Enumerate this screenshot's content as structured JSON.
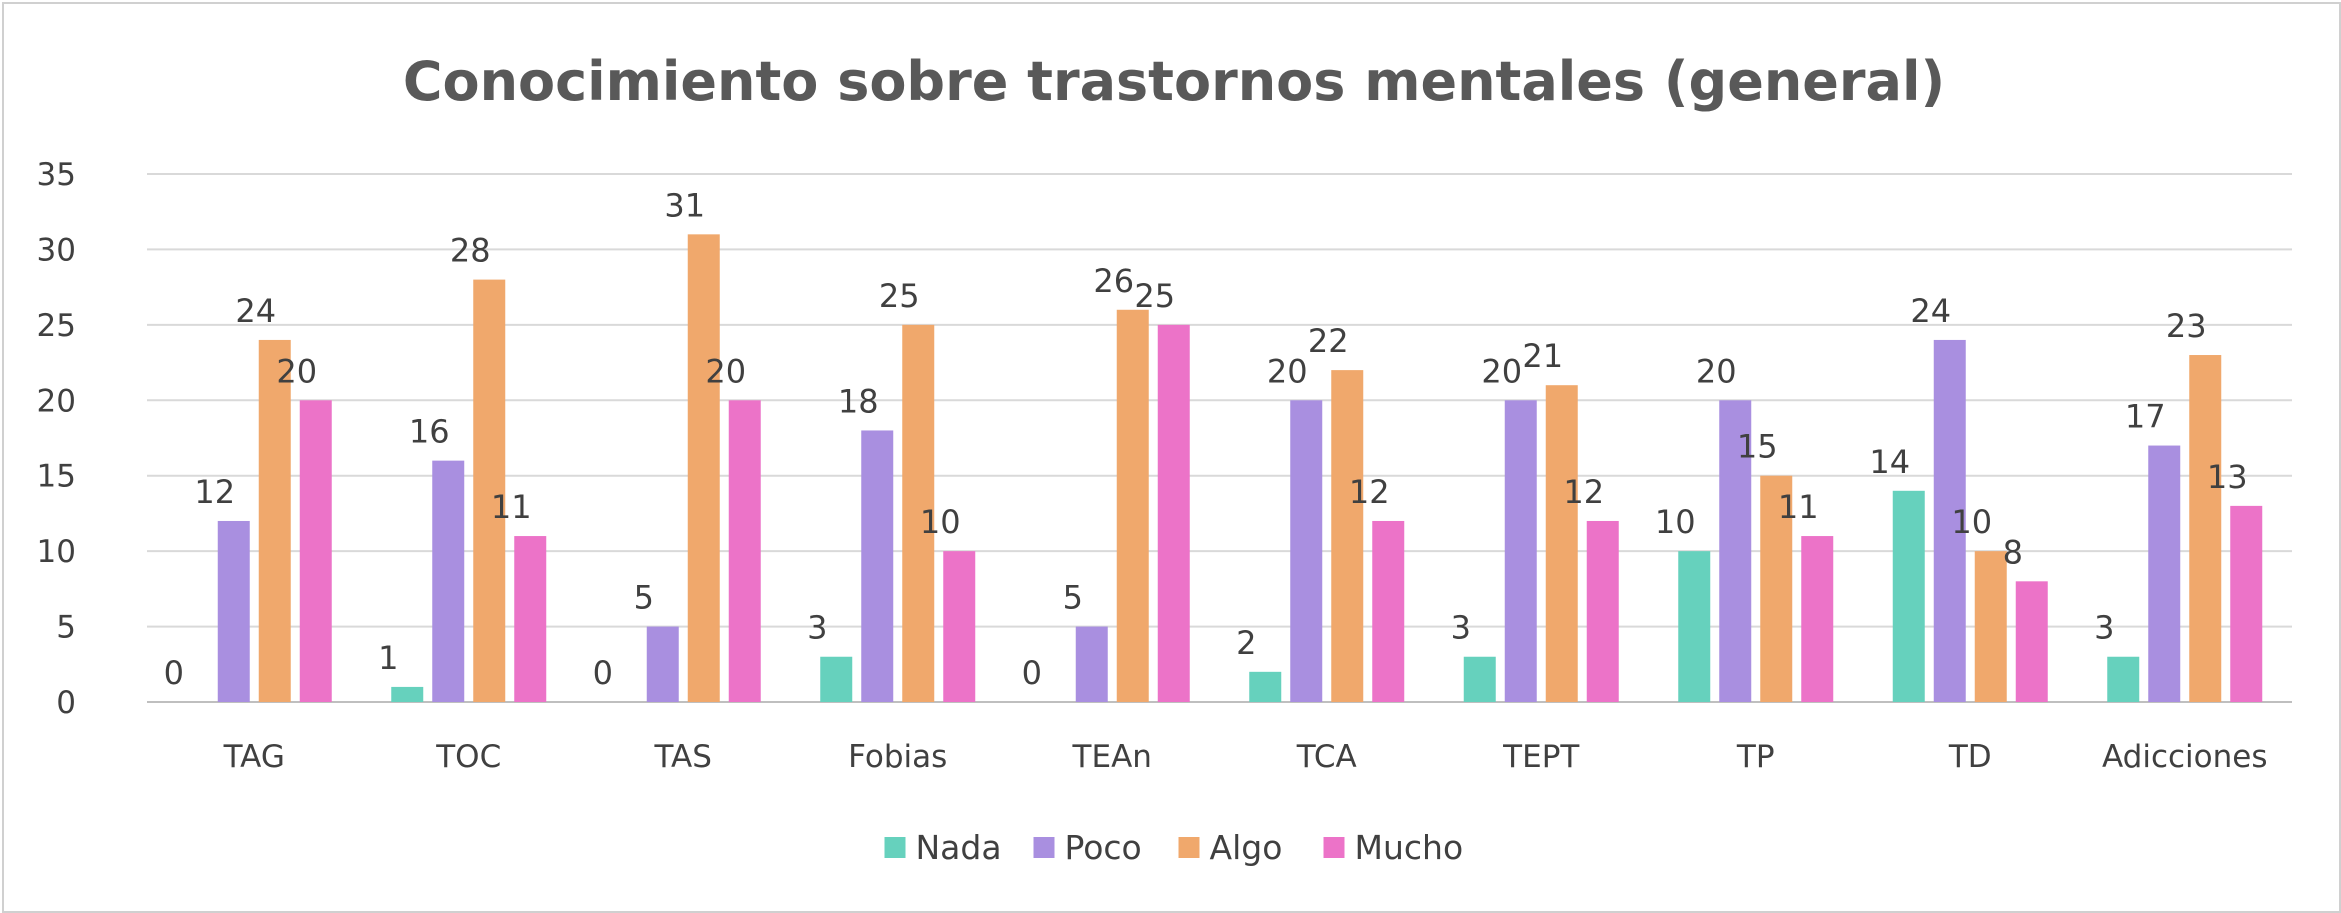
{
  "chart_data": {
    "type": "bar",
    "title": "Conocimiento sobre trastornos mentales (general)",
    "xlabel": "",
    "ylabel": "",
    "ylim": [
      0,
      35
    ],
    "yticks": [
      0,
      5,
      10,
      15,
      20,
      25,
      30,
      35
    ],
    "grid": true,
    "legend_position": "bottom",
    "categories": [
      "TAG",
      "TOC",
      "TAS",
      "Fobias",
      "TEAn",
      "TCA",
      "TEPT",
      "TP",
      "TD",
      "Adicciones"
    ],
    "series": [
      {
        "name": "Nada",
        "color": "#66d1bd",
        "values": [
          0,
          1,
          0,
          3,
          0,
          2,
          3,
          10,
          14,
          3
        ]
      },
      {
        "name": "Poco",
        "color": "#a98fe0",
        "values": [
          12,
          16,
          5,
          18,
          5,
          20,
          20,
          20,
          24,
          17
        ]
      },
      {
        "name": "Algo",
        "color": "#f0a86c",
        "values": [
          24,
          28,
          31,
          25,
          26,
          22,
          21,
          15,
          10,
          23
        ]
      },
      {
        "name": "Mucho",
        "color": "#ec73c8",
        "values": [
          20,
          11,
          20,
          10,
          25,
          12,
          12,
          11,
          8,
          13
        ]
      }
    ]
  }
}
